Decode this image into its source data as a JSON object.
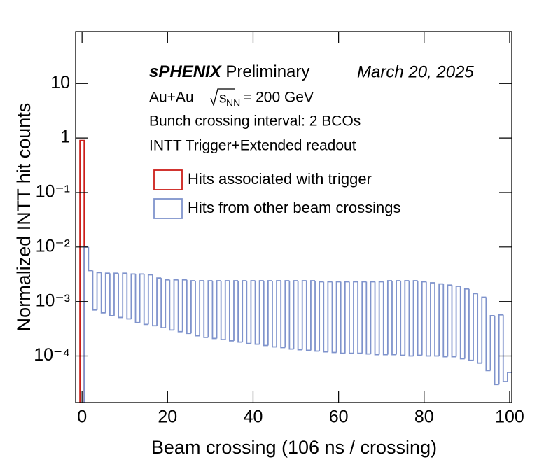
{
  "chart_data": {
    "type": "histogram",
    "xlabel": "Beam crossing (106 ns / crossing)",
    "ylabel": "Normalized INTT hit counts",
    "log_y": true,
    "xlim": [
      -1.5,
      100.5
    ],
    "ylim": [
      1.4e-05,
      90
    ],
    "xticks": [
      0,
      20,
      40,
      60,
      80,
      100
    ],
    "yticks": [
      {
        "value": 0.0001,
        "label": "10⁻⁴"
      },
      {
        "value": 0.001,
        "label": "10⁻³"
      },
      {
        "value": 0.01,
        "label": "10⁻²"
      },
      {
        "value": 0.1,
        "label": "10⁻¹"
      },
      1,
      10
    ],
    "annotations": {
      "experiment": "sPHENIX",
      "status": "Preliminary",
      "date": "March 20, 2025",
      "system": "Au+Au",
      "energy_var": "s",
      "energy_sub": "NN",
      "energy": "= 200 GeV",
      "lines": [
        "Bunch crossing interval: 2 BCOs",
        "INTT Trigger+Extended readout"
      ]
    },
    "legend": "upper right",
    "bins": [
      -0.5,
      0.5,
      1.5,
      2.5,
      3.5,
      4.5,
      5.5,
      6.5,
      7.5,
      8.5,
      9.5,
      10.5,
      11.5,
      12.5,
      13.5,
      14.5,
      15.5,
      16.5,
      17.5,
      18.5,
      19.5,
      20.5,
      21.5,
      22.5,
      23.5,
      24.5,
      25.5,
      26.5,
      27.5,
      28.5,
      29.5,
      30.5,
      31.5,
      32.5,
      33.5,
      34.5,
      35.5,
      36.5,
      37.5,
      38.5,
      39.5,
      40.5,
      41.5,
      42.5,
      43.5,
      44.5,
      45.5,
      46.5,
      47.5,
      48.5,
      49.5,
      50.5,
      51.5,
      52.5,
      53.5,
      54.5,
      55.5,
      56.5,
      57.5,
      58.5,
      59.5,
      60.5,
      61.5,
      62.5,
      63.5,
      64.5,
      65.5,
      66.5,
      67.5,
      68.5,
      69.5,
      70.5,
      71.5,
      72.5,
      73.5,
      74.5,
      75.5,
      76.5,
      77.5,
      78.5,
      79.5,
      80.5,
      81.5,
      82.5,
      83.5,
      84.5,
      85.5,
      86.5,
      87.5,
      88.5,
      89.5,
      90.5,
      91.5,
      92.5,
      93.5,
      94.5,
      95.5,
      96.5,
      97.5,
      98.5,
      99.5,
      100.5
    ],
    "series": [
      {
        "name": "Hits associated with trigger",
        "color": "#cc1f1a",
        "values": [
          0.9,
          null,
          null,
          null,
          null,
          null,
          null,
          null,
          null,
          null,
          null,
          null,
          null,
          null,
          null,
          null,
          null,
          null,
          null,
          null,
          null,
          null,
          null,
          null,
          null,
          null,
          null,
          null,
          null,
          null,
          null,
          null,
          null,
          null,
          null,
          null,
          null,
          null,
          null,
          null,
          null,
          null,
          null,
          null,
          null,
          null,
          null,
          null,
          null,
          null,
          null,
          null,
          null,
          null,
          null,
          null,
          null,
          null,
          null,
          null,
          null,
          null,
          null,
          null,
          null,
          null,
          null,
          null,
          null,
          null,
          null,
          null,
          null,
          null,
          null,
          null,
          null,
          null,
          null,
          null,
          null,
          null,
          null,
          null,
          null,
          null,
          null,
          null,
          null,
          null,
          null,
          null,
          null,
          null,
          null,
          null,
          null,
          null,
          null,
          null,
          null
        ]
      },
      {
        "name": "Hits from other beam crossings",
        "color": "#7f93cc",
        "values": [
          null,
          0.01,
          0.0037,
          0.0007,
          0.0034,
          0.00062,
          0.0033,
          0.00055,
          0.0033,
          0.00051,
          0.0033,
          0.00048,
          0.0032,
          0.00041,
          0.0032,
          0.00038,
          0.0031,
          0.00036,
          0.0027,
          0.00033,
          0.0025,
          0.0003,
          0.0025,
          0.00028,
          0.0025,
          0.00026,
          0.0024,
          0.000235,
          0.0024,
          0.00022,
          0.0024,
          0.00021,
          0.0024,
          0.0002,
          0.0024,
          0.00019,
          0.0024,
          0.00018,
          0.0024,
          0.00017,
          0.0024,
          0.000165,
          0.0024,
          0.000156,
          0.0024,
          0.000147,
          0.0024,
          0.000143,
          0.0024,
          0.000134,
          0.0024,
          0.00013,
          0.0024,
          0.000127,
          0.0024,
          0.000123,
          0.0023,
          0.000119,
          0.0023,
          0.000116,
          0.0023,
          0.000112,
          0.0023,
          0.000112,
          0.0023,
          0.000112,
          0.0023,
          0.000109,
          0.0023,
          0.000106,
          0.0023,
          0.000106,
          0.0024,
          0.000106,
          0.0024,
          0.000103,
          0.0024,
          0.0001,
          0.0024,
          0.000103,
          0.0023,
          0.0001,
          0.0022,
          0.0001,
          0.0021,
          9.7e-05,
          0.002,
          9.7e-05,
          0.0019,
          8.9e-05,
          0.0017,
          8.3e-05,
          0.0014,
          7.4e-05,
          0.0012,
          5.4e-05,
          0.00055,
          3e-05,
          0.00057,
          3.4e-05,
          5e-05
        ]
      }
    ]
  }
}
